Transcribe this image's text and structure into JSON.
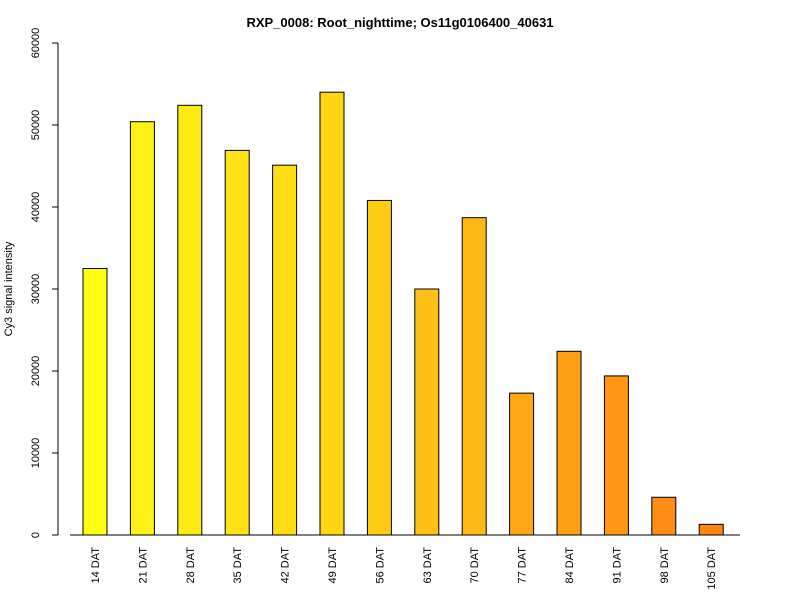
{
  "chart_data": {
    "type": "bar",
    "title": "RXP_0008: Root_nighttime; Os11g0106400_40631",
    "xlabel": "",
    "ylabel": "Cy3 signal intensity",
    "ylim": [
      0,
      60000
    ],
    "yticks": [
      0,
      10000,
      20000,
      30000,
      40000,
      50000,
      60000
    ],
    "grid": false,
    "legend": "none",
    "categories": [
      "14 DAT",
      "21 DAT",
      "28 DAT",
      "35 DAT",
      "42 DAT",
      "49 DAT",
      "56 DAT",
      "63 DAT",
      "70 DAT",
      "77 DAT",
      "84 DAT",
      "91 DAT",
      "98 DAT",
      "105 DAT"
    ],
    "values": [
      32500,
      50400,
      52400,
      46900,
      45100,
      54000,
      40800,
      30000,
      38700,
      17300,
      22400,
      19400,
      4600,
      1300
    ],
    "colors": [
      "#FFFF14",
      "#FFF114",
      "#FFEB14",
      "#FFE314",
      "#FFDC14",
      "#FFD514",
      "#FFCC14",
      "#FFBF14",
      "#FFB814",
      "#FFA814",
      "#FFA014",
      "#FF9714",
      "#FF8C14",
      "#FF8414"
    ]
  }
}
